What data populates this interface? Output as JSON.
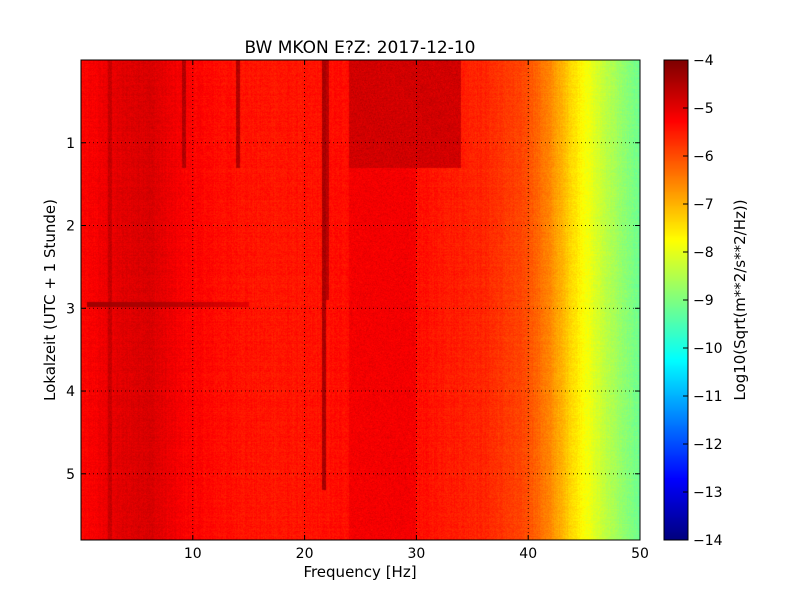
{
  "chart_data": {
    "type": "heatmap",
    "title": "BW MKON E?Z: 2017-12-10",
    "xlabel": "Frequency [Hz]",
    "ylabel": "Lokalzeit (UTC + 1 Stunde)",
    "xlim": [
      0,
      50
    ],
    "ylim": [
      5.8,
      0
    ],
    "x_ticks": [
      10,
      20,
      30,
      40,
      50
    ],
    "x_tick_labels": [
      "10",
      "20",
      "30",
      "40",
      "50"
    ],
    "y_ticks": [
      1,
      2,
      3,
      4,
      5
    ],
    "y_tick_labels": [
      "1",
      "2",
      "3",
      "4",
      "5"
    ],
    "grid": true,
    "colorbar": {
      "label": "Log10(Sqrt(m**2/s**2/Hz))",
      "range": [
        -14,
        -4
      ],
      "ticks": [
        -4,
        -5,
        -6,
        -7,
        -8,
        -9,
        -10,
        -11,
        -12,
        -13,
        -14
      ],
      "tick_labels": [
        "−4",
        "−5",
        "−6",
        "−7",
        "−8",
        "−9",
        "−10",
        "−11",
        "−12",
        "−13",
        "−14"
      ],
      "colormap": "jet"
    },
    "frequency_profile": {
      "frequency_hz": [
        0,
        3,
        6,
        9,
        12,
        16,
        20,
        24,
        28,
        32,
        36,
        38,
        40,
        42,
        44,
        46,
        48,
        50
      ],
      "level": [
        -5.3,
        -5.0,
        -4.85,
        -5.2,
        -5.35,
        -5.45,
        -5.45,
        -5.35,
        -5.3,
        -5.45,
        -5.6,
        -5.8,
        -6.0,
        -6.6,
        -7.4,
        -8.1,
        -8.7,
        -9.2
      ]
    },
    "features": [
      {
        "kind": "vertical_line",
        "frequency_hz": 2.6,
        "from_hour": 0,
        "to_hour": 5.8,
        "level": -4.7
      },
      {
        "kind": "vertical_line",
        "frequency_hz": 9.2,
        "from_hour": 0,
        "to_hour": 1.3,
        "level": -4.5
      },
      {
        "kind": "vertical_line",
        "frequency_hz": 14.0,
        "from_hour": 0,
        "to_hour": 1.3,
        "level": -4.5
      },
      {
        "kind": "vertical_line",
        "frequency_hz": 21.7,
        "from_hour": 0,
        "to_hour": 5.2,
        "level": -4.4
      },
      {
        "kind": "vertical_line",
        "frequency_hz": 22.0,
        "from_hour": 0,
        "to_hour": 2.9,
        "level": -4.6
      },
      {
        "kind": "horizontal_line",
        "hour": 2.95,
        "from_hz": 0.5,
        "to_hz": 15,
        "level": -4.3
      },
      {
        "kind": "region",
        "from_hz": 24,
        "to_hz": 34,
        "from_hour": 0,
        "to_hour": 1.3,
        "level": -4.8
      },
      {
        "kind": "region",
        "from_hz": 24,
        "to_hz": 30,
        "from_hour": 1.3,
        "to_hour": 5.8,
        "level": -5.15
      }
    ]
  }
}
